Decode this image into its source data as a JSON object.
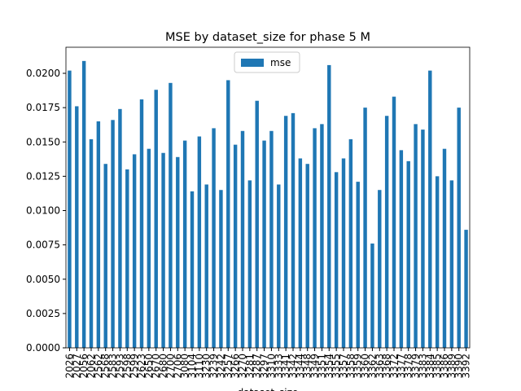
{
  "chart_data": {
    "type": "bar",
    "title": "MSE by dataset_size for phase 5 M",
    "x_label": "dataset_size",
    "categories": [
      "2026",
      "2027",
      "2056",
      "2062",
      "2562",
      "2568",
      "2583",
      "2593",
      "2598",
      "2599",
      "2623",
      "2650",
      "2670",
      "2680",
      "2700",
      "2706",
      "3080",
      "3104",
      "3110",
      "3230",
      "3239",
      "3242",
      "3257",
      "3266",
      "3270",
      "3281",
      "3287",
      "3297",
      "3310",
      "3333",
      "3341",
      "3342",
      "3344",
      "3348",
      "3349",
      "3351",
      "3354",
      "3355",
      "3357",
      "3358",
      "3359",
      "3360",
      "3362",
      "3363",
      "3368",
      "3372",
      "3377",
      "3378",
      "3379",
      "3383",
      "3384",
      "3385",
      "3386",
      "3389",
      "3390",
      "3392"
    ],
    "series": [
      {
        "name": "mse",
        "color": "#1f77b4",
        "values": [
          0.0202,
          0.0176,
          0.0209,
          0.0152,
          0.0165,
          0.0134,
          0.0166,
          0.0174,
          0.013,
          0.0141,
          0.0181,
          0.0145,
          0.0188,
          0.0142,
          0.0193,
          0.0139,
          0.0151,
          0.0114,
          0.0154,
          0.0119,
          0.016,
          0.0115,
          0.0195,
          0.0148,
          0.0158,
          0.0122,
          0.018,
          0.0151,
          0.0158,
          0.0119,
          0.0169,
          0.0171,
          0.0138,
          0.0134,
          0.016,
          0.0163,
          0.0206,
          0.0128,
          0.0138,
          0.0152,
          0.0121,
          0.0175,
          0.0076,
          0.0115,
          0.0169,
          0.0183,
          0.0144,
          0.0136,
          0.0163,
          0.0159,
          0.0202,
          0.0125,
          0.0145,
          0.0122,
          0.0175,
          0.0086
        ]
      }
    ],
    "ylim": [
      0,
      0.0219
    ],
    "yticks": [
      {
        "value": 0,
        "label": "0.0000"
      },
      {
        "value": 0.0025,
        "label": "0.0025"
      },
      {
        "value": 0.005,
        "label": "0.0050"
      },
      {
        "value": 0.0075,
        "label": "0.0075"
      },
      {
        "value": 0.01,
        "label": "0.0100"
      },
      {
        "value": 0.0125,
        "label": "0.0125"
      },
      {
        "value": 0.015,
        "label": "0.0150"
      },
      {
        "value": 0.0175,
        "label": "0.0175"
      },
      {
        "value": 0.02,
        "label": "0.0200"
      }
    ],
    "legend": "upper center"
  }
}
